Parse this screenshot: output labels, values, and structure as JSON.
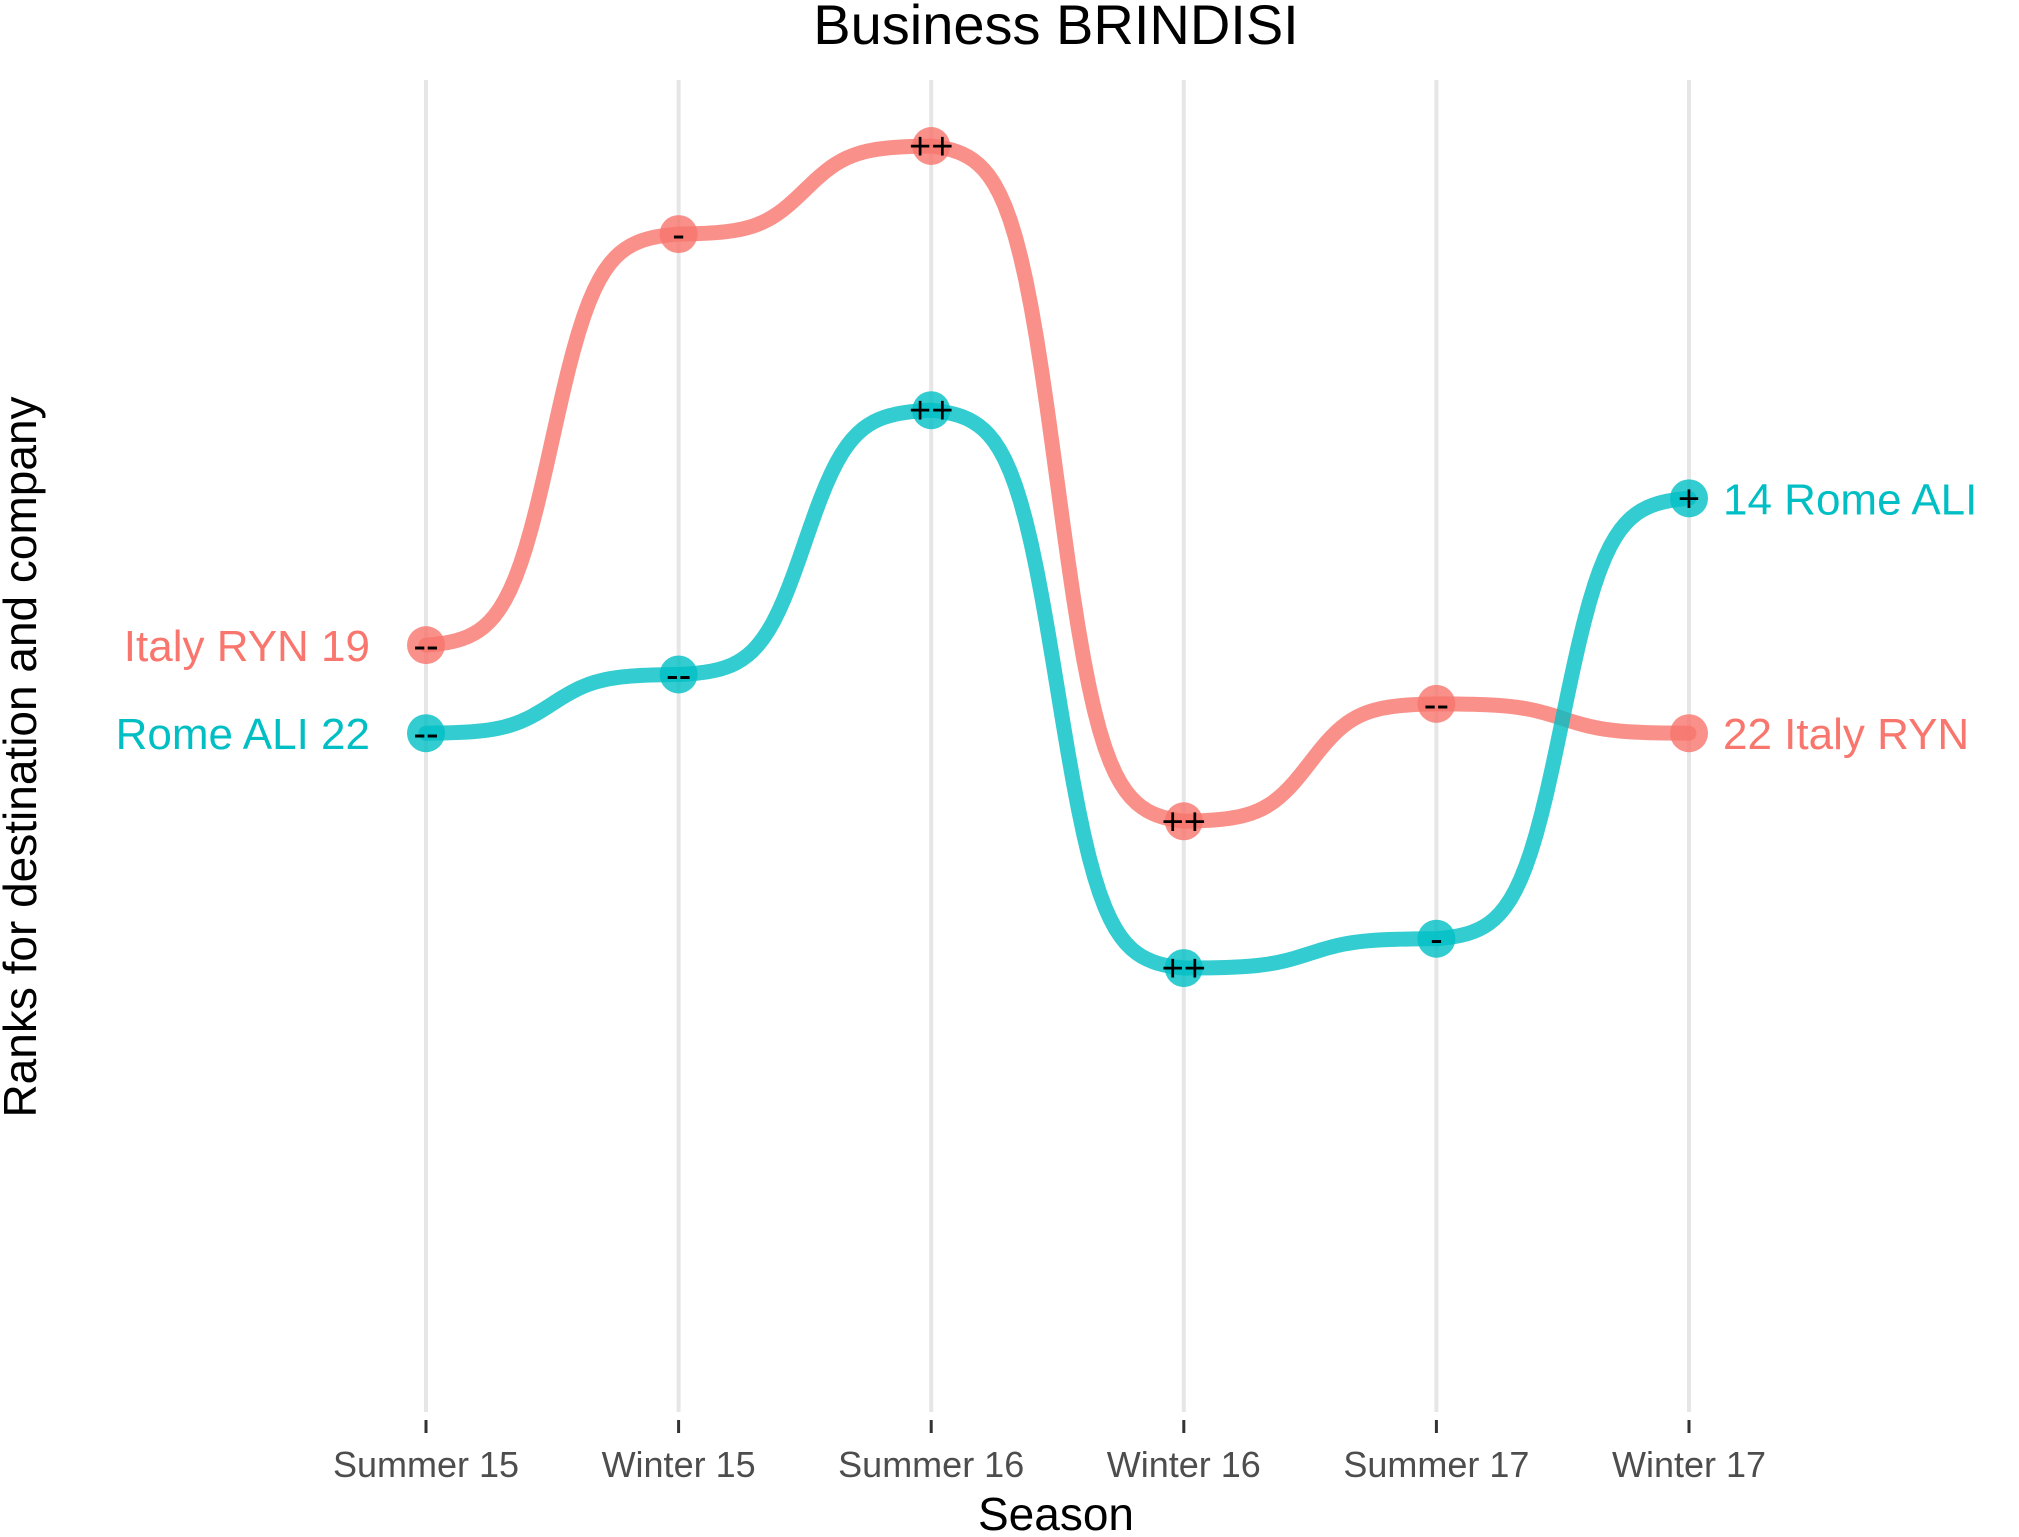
{
  "chart_data": {
    "type": "line",
    "title": "Business BRINDISI",
    "xlabel": "Season",
    "ylabel": "Ranks for destination and company",
    "categories": [
      "Summer 15",
      "Winter 15",
      "Summer 16",
      "Winter 16",
      "Summer 17",
      "Winter 17"
    ],
    "series": [
      {
        "name": "Italy RYN",
        "color": "#F8766D",
        "values": [
          19,
          5,
          2,
          25,
          21,
          22
        ],
        "marks": [
          "--",
          "-",
          "++",
          "++",
          "--",
          ""
        ],
        "start_label": "Italy RYN  19",
        "end_label": "22  Italy RYN"
      },
      {
        "name": "Rome ALI",
        "color": "#00BFC4",
        "values": [
          22,
          20,
          11,
          30,
          29,
          14
        ],
        "marks": [
          "--",
          "--",
          "++",
          "++",
          "-",
          "+"
        ],
        "start_label": "Rome ALI  22",
        "end_label": "14  Rome ALI"
      }
    ],
    "grid": "vertical",
    "legend": "none"
  }
}
